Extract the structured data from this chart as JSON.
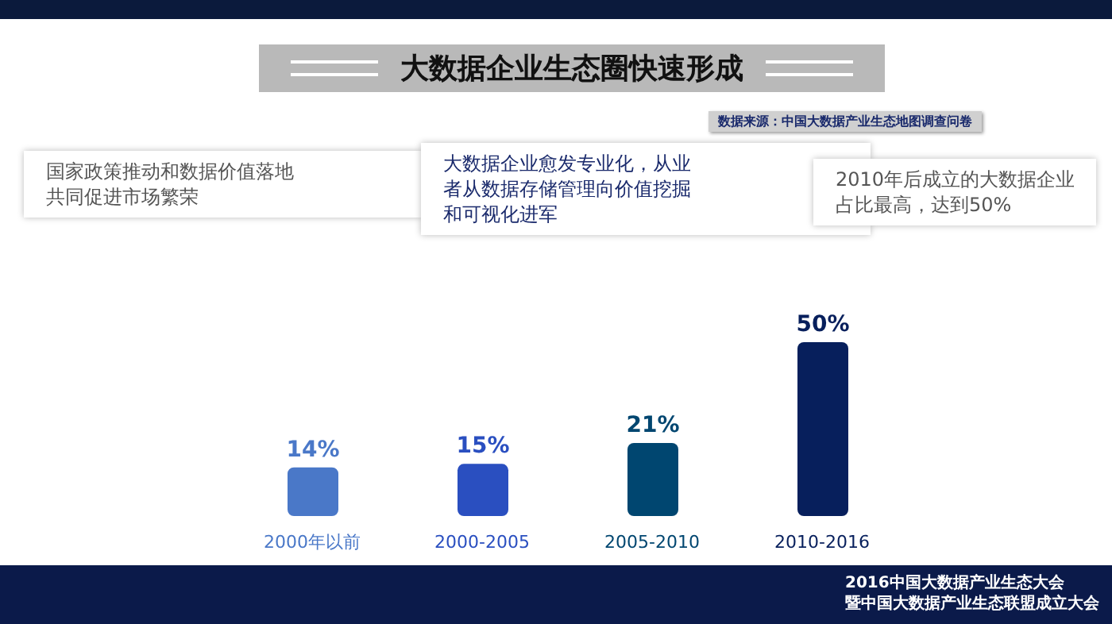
{
  "chart_data": {
    "type": "bar",
    "title": "大数据企业生态圈快速形成",
    "categories": [
      "2000年以前",
      "2000-2005",
      "2005-2010",
      "2010-2016"
    ],
    "values": [
      14,
      15,
      21,
      50
    ],
    "value_labels": [
      "14%",
      "15%",
      "21%",
      "50%"
    ],
    "colors": [
      "#4a78c8",
      "#2a4fc0",
      "#004670",
      "#071f5c"
    ],
    "annotations": [
      "国家政策推动和数据价值落地共同促进市场繁荣",
      "大数据企业愈发专业化，从业者从数据存储管理向价值挖掘和可视化进军",
      "2010年后成立的大数据企业占比最高，达到50%",
      "数据来源：中国大数据产业生态地图调查问卷",
      "2016中国大数据产业生态大会",
      "暨中国大数据产业生态联盟成立大会"
    ],
    "grid": false,
    "legend": false
  }
}
